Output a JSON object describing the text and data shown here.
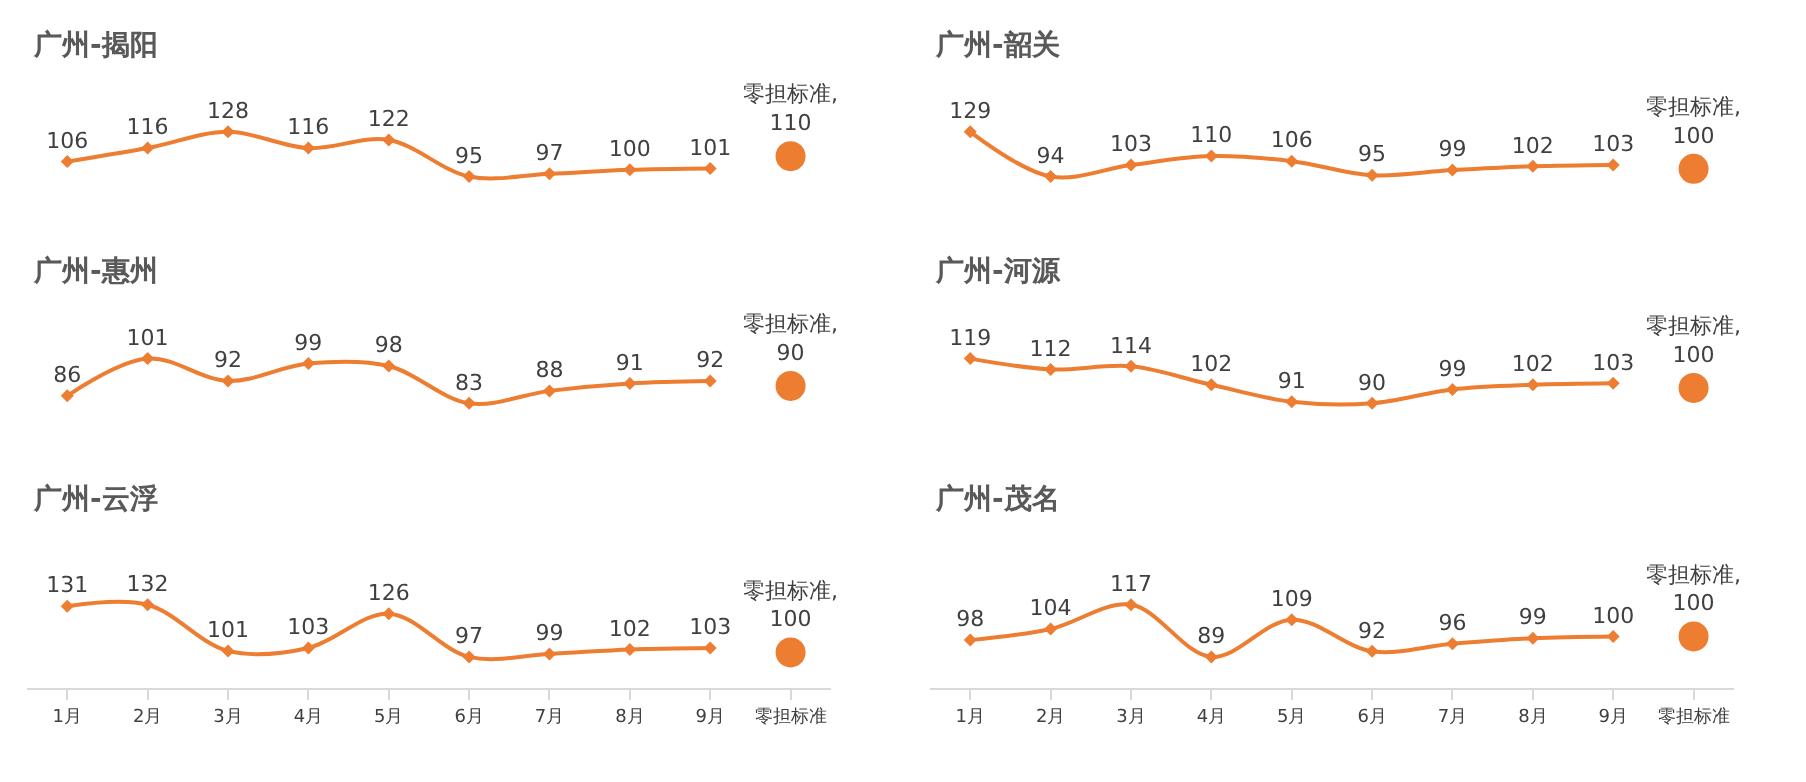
{
  "chart_data": [
    {
      "type": "line",
      "title": "广州-揭阳",
      "categories": [
        "1月",
        "2月",
        "3月",
        "4月",
        "5月",
        "6月",
        "7月",
        "8月",
        "9月",
        "零担标准"
      ],
      "marker": "diamond",
      "data_labels": true,
      "tick_labels": false,
      "series": [
        {
          "color": "#ed7d31",
          "values": [
            106,
            116,
            128,
            116,
            122,
            95,
            97,
            100,
            101,
            null
          ]
        },
        {
          "type": "scatter",
          "marker": "circle",
          "color": "#ed7d31",
          "values": [
            null,
            null,
            null,
            null,
            null,
            null,
            null,
            null,
            null,
            110
          ],
          "value_labels": [
            null,
            null,
            null,
            null,
            null,
            null,
            null,
            null,
            null,
            "零担标准,\n110"
          ]
        }
      ]
    },
    {
      "type": "line",
      "title": "广州-韶关",
      "categories": [
        "1月",
        "2月",
        "3月",
        "4月",
        "5月",
        "6月",
        "7月",
        "8月",
        "9月",
        "零担标准"
      ],
      "marker": "diamond",
      "data_labels": true,
      "tick_labels": false,
      "series": [
        {
          "color": "#ed7d31",
          "values": [
            129,
            94,
            103,
            110,
            106,
            95,
            99,
            102,
            103,
            null
          ]
        },
        {
          "type": "scatter",
          "marker": "circle",
          "color": "#ed7d31",
          "values": [
            null,
            null,
            null,
            null,
            null,
            null,
            null,
            null,
            null,
            100
          ],
          "value_labels": [
            null,
            null,
            null,
            null,
            null,
            null,
            null,
            null,
            null,
            "零担标准,\n100"
          ]
        }
      ]
    },
    {
      "type": "line",
      "title": "广州-惠州",
      "categories": [
        "1月",
        "2月",
        "3月",
        "4月",
        "5月",
        "6月",
        "7月",
        "8月",
        "9月",
        "零担标准"
      ],
      "marker": "diamond",
      "data_labels": true,
      "tick_labels": false,
      "series": [
        {
          "color": "#ed7d31",
          "values": [
            86,
            101,
            92,
            99,
            98,
            83,
            88,
            91,
            92,
            null
          ]
        },
        {
          "type": "scatter",
          "marker": "circle",
          "color": "#ed7d31",
          "values": [
            null,
            null,
            null,
            null,
            null,
            null,
            null,
            null,
            null,
            90
          ],
          "value_labels": [
            null,
            null,
            null,
            null,
            null,
            null,
            null,
            null,
            null,
            "零担标准,\n90"
          ]
        }
      ]
    },
    {
      "type": "line",
      "title": "广州-河源",
      "categories": [
        "1月",
        "2月",
        "3月",
        "4月",
        "5月",
        "6月",
        "7月",
        "8月",
        "9月",
        "零担标准"
      ],
      "marker": "diamond",
      "data_labels": true,
      "tick_labels": false,
      "series": [
        {
          "color": "#ed7d31",
          "values": [
            119,
            112,
            114,
            102,
            91,
            90,
            99,
            102,
            103,
            null
          ]
        },
        {
          "type": "scatter",
          "marker": "circle",
          "color": "#ed7d31",
          "values": [
            null,
            null,
            null,
            null,
            null,
            null,
            null,
            null,
            null,
            100
          ],
          "value_labels": [
            null,
            null,
            null,
            null,
            null,
            null,
            null,
            null,
            null,
            "零担标准,\n100"
          ]
        }
      ]
    },
    {
      "type": "line",
      "title": "广州-云浮",
      "categories": [
        "1月",
        "2月",
        "3月",
        "4月",
        "5月",
        "6月",
        "7月",
        "8月",
        "9月",
        "零担标准"
      ],
      "marker": "diamond",
      "data_labels": true,
      "tick_labels": "x",
      "series": [
        {
          "color": "#ed7d31",
          "values": [
            131,
            132,
            101,
            103,
            126,
            97,
            99,
            102,
            103,
            null
          ]
        },
        {
          "type": "scatter",
          "marker": "circle",
          "color": "#ed7d31",
          "values": [
            null,
            null,
            null,
            null,
            null,
            null,
            null,
            null,
            null,
            100
          ],
          "value_labels": [
            null,
            null,
            null,
            null,
            null,
            null,
            null,
            null,
            null,
            "零担标准,\n100"
          ]
        }
      ]
    },
    {
      "type": "line",
      "title": "广州-茂名",
      "categories": [
        "1月",
        "2月",
        "3月",
        "4月",
        "5月",
        "6月",
        "7月",
        "8月",
        "9月",
        "零担标准"
      ],
      "marker": "diamond",
      "data_labels": true,
      "tick_labels": "x",
      "series": [
        {
          "color": "#ed7d31",
          "values": [
            98,
            104,
            117,
            89,
            109,
            92,
            96,
            99,
            100,
            null
          ]
        },
        {
          "type": "scatter",
          "marker": "circle",
          "color": "#ed7d31",
          "values": [
            null,
            null,
            null,
            null,
            null,
            null,
            null,
            null,
            null,
            100
          ],
          "value_labels": [
            null,
            null,
            null,
            null,
            null,
            null,
            null,
            null,
            null,
            "零担标准,\n100"
          ]
        }
      ]
    }
  ]
}
